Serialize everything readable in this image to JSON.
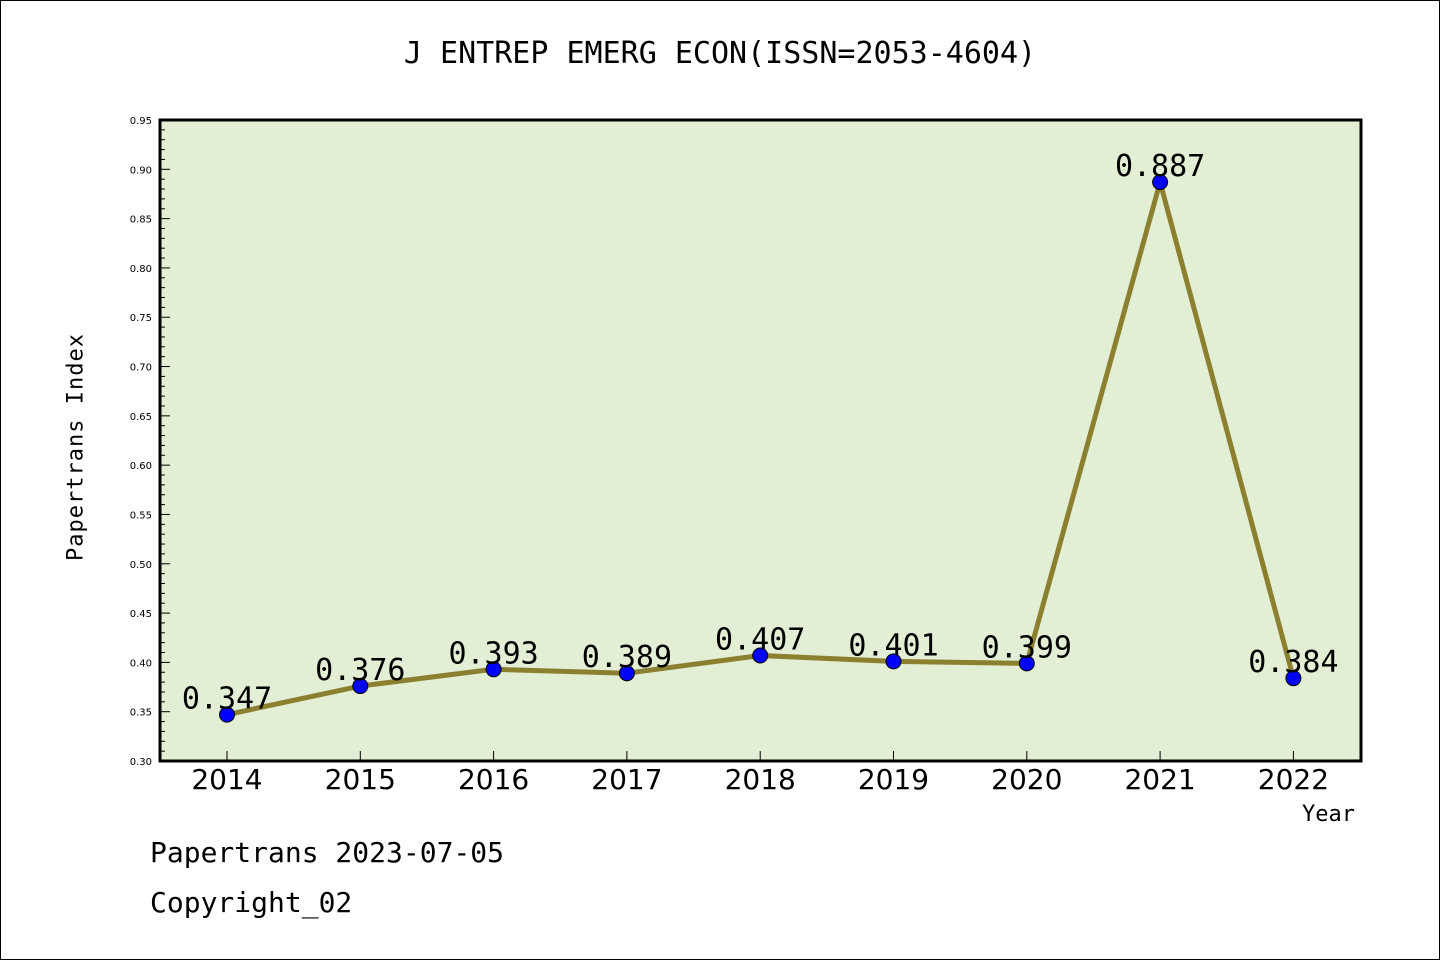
{
  "chart_data": {
    "type": "line",
    "title": "J ENTREP EMERG ECON(ISSN=2053-4604)",
    "xlabel": "Year",
    "ylabel": "Papertrans Index",
    "categories": [
      "2014",
      "2015",
      "2016",
      "2017",
      "2018",
      "2019",
      "2020",
      "2021",
      "2022"
    ],
    "values": [
      0.347,
      0.376,
      0.393,
      0.389,
      0.407,
      0.401,
      0.399,
      0.887,
      0.384
    ],
    "data_labels": [
      "0.347",
      "0.376",
      "0.393",
      "0.389",
      "0.407",
      "0.401",
      "0.399",
      "0.887",
      "0.384"
    ],
    "ylim": [
      0.3,
      0.95
    ],
    "yticks": [
      "0.30",
      "0.35",
      "0.40",
      "0.45",
      "0.50",
      "0.55",
      "0.60",
      "0.65",
      "0.70",
      "0.75",
      "0.80",
      "0.85",
      "0.90",
      "0.95"
    ],
    "grid": false,
    "colors": {
      "plot_background": "#e2efd4",
      "line": "#8b8030",
      "marker": "#0000ff"
    }
  },
  "footer": {
    "source": "Papertrans 2023-07-05",
    "copyright": "Copyright_02"
  }
}
